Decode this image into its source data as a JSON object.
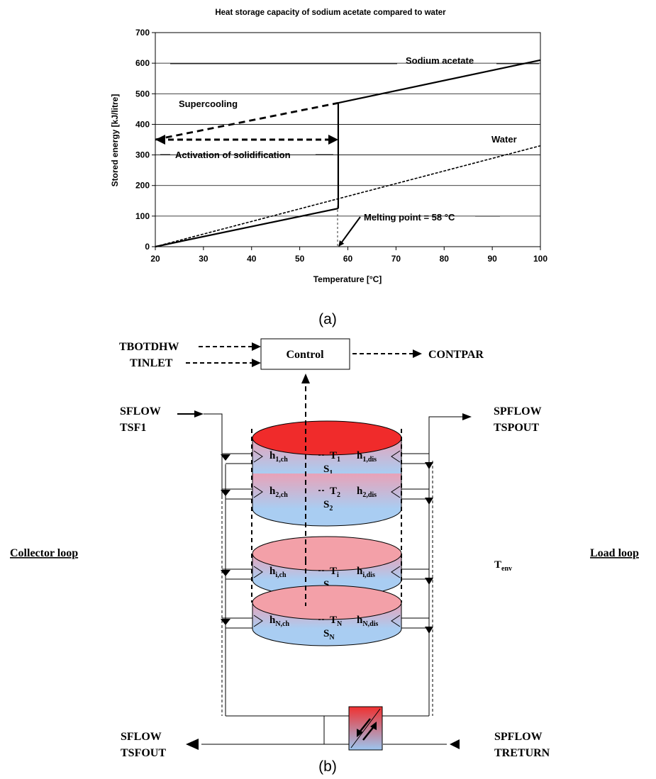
{
  "chart_data": {
    "type": "line",
    "title": "Heat storage capacity of sodium acetate compared to water",
    "xlabel": "Temperature  [°C]",
    "ylabel": "Stored energy  [kJ/litre]",
    "xlim": [
      20,
      100
    ],
    "ylim": [
      0,
      700
    ],
    "xticks": [
      20,
      30,
      40,
      50,
      60,
      70,
      80,
      90,
      100
    ],
    "yticks": [
      0,
      100,
      200,
      300,
      400,
      500,
      600,
      700
    ],
    "grid": "horizontal",
    "series": [
      {
        "name": "Sodium acetate",
        "segments": [
          {
            "style": "solid",
            "x": [
              20,
              58
            ],
            "y": [
              0,
              125
            ]
          },
          {
            "style": "solid",
            "x": [
              58,
              58
            ],
            "y": [
              125,
              470
            ]
          },
          {
            "style": "solid",
            "x": [
              58,
              100
            ],
            "y": [
              470,
              610
            ]
          },
          {
            "style": "dashed",
            "x": [
              20,
              58
            ],
            "y": [
              350,
              470
            ]
          }
        ]
      },
      {
        "name": "Water",
        "segments": [
          {
            "style": "dotted",
            "x": [
              20,
              100
            ],
            "y": [
              0,
              330
            ]
          }
        ]
      }
    ],
    "annotations": {
      "supercooling": "Supercooling",
      "activation": "Activation of solidification",
      "melting": "Melting point = 58 °C",
      "sodium": "Sodium acetate",
      "water": "Water"
    }
  },
  "captions": {
    "a": "(a)",
    "b": "(b)"
  },
  "diagram": {
    "control": "Control",
    "inputs": [
      "TBOTDHW",
      "TINLET"
    ],
    "output": "CONTPAR",
    "collector_in": [
      "SFLOW",
      "TSF1"
    ],
    "load_out": [
      "SPFLOW",
      "TSPOUT"
    ],
    "collector_out": [
      "SFLOW",
      "TSFOUT"
    ],
    "load_in": [
      "SPFLOW",
      "TRETURN"
    ],
    "collector_loop": "Collector loop",
    "load_loop": "Load loop",
    "env": {
      "base": "T",
      "sub": "env"
    },
    "layers": [
      {
        "hch": "h",
        "hch_sub": "1,ch",
        "t": "T",
        "t_sub": "1",
        "hdis": "h",
        "hdis_sub": "1,dis",
        "s": "S",
        "s_sub": "1"
      },
      {
        "hch": "h",
        "hch_sub": "2,ch",
        "t": "T",
        "t_sub": "2",
        "hdis": "h",
        "hdis_sub": "2,dis",
        "s": "S",
        "s_sub": "2"
      },
      {
        "hch": "h",
        "hch_sub": "i,ch",
        "t": "T",
        "t_sub": "i",
        "hdis": "h",
        "hdis_sub": "i,dis",
        "s": "S",
        "s_sub": "i"
      },
      {
        "hch": "h",
        "hch_sub": "N,ch",
        "t": "T",
        "t_sub": "N",
        "hdis": "h",
        "hdis_sub": "N,dis",
        "s": "S",
        "s_sub": "N"
      }
    ]
  }
}
